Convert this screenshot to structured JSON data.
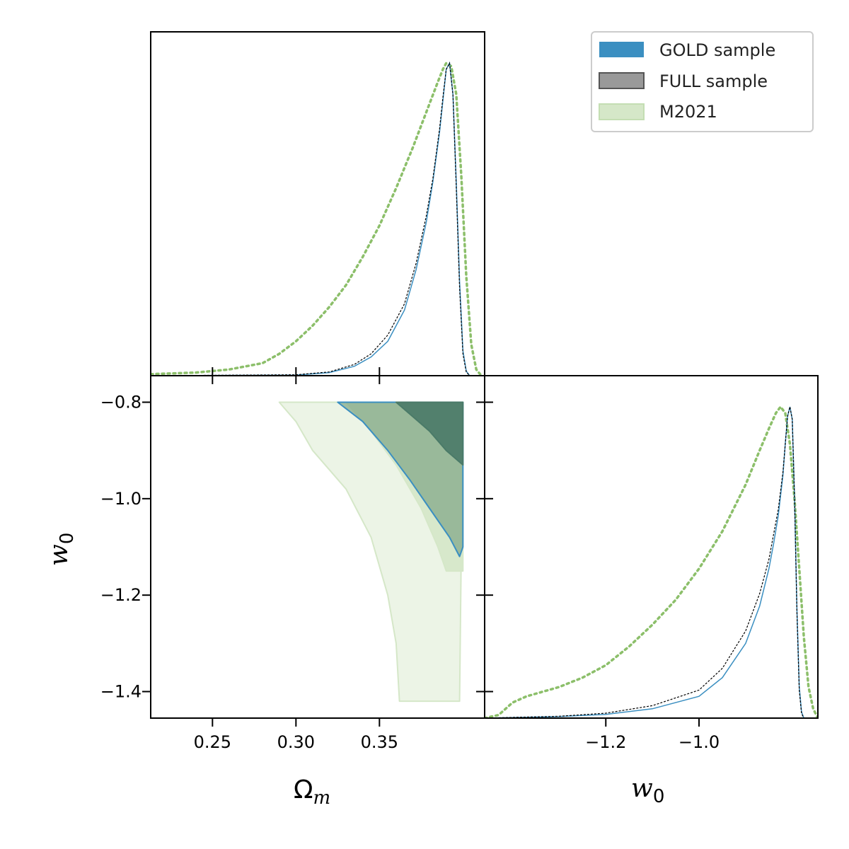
{
  "colors": {
    "gold": "#3b8fc1",
    "full": "#000000",
    "full_fill": "#999999",
    "m2021_line": "#8cbf6a",
    "m2021_fill": "#d5e7c8",
    "frame": "#000000"
  },
  "chart_data": [
    {
      "type": "line",
      "panel": "1D marginal Omega_m",
      "xlim": [
        0.213,
        0.413
      ],
      "ylim": [
        0,
        1.1
      ],
      "series": [
        {
          "name": "GOLD sample",
          "style": "solid",
          "x": [
            0.213,
            0.3,
            0.32,
            0.335,
            0.345,
            0.355,
            0.365,
            0.372,
            0.378,
            0.382,
            0.386,
            0.388,
            0.39,
            0.392,
            0.394,
            0.396,
            0.398,
            0.4,
            0.402,
            0.404,
            0.413
          ],
          "y": [
            0,
            0.002,
            0.01,
            0.03,
            0.06,
            0.11,
            0.21,
            0.34,
            0.49,
            0.62,
            0.78,
            0.88,
            0.98,
            1.0,
            0.9,
            0.62,
            0.3,
            0.08,
            0.015,
            0,
            0
          ]
        },
        {
          "name": "FULL sample",
          "style": "dashed",
          "x": [
            0.213,
            0.3,
            0.32,
            0.335,
            0.345,
            0.355,
            0.365,
            0.372,
            0.378,
            0.382,
            0.386,
            0.388,
            0.39,
            0.392,
            0.394,
            0.396,
            0.398,
            0.4,
            0.402,
            0.404,
            0.413
          ],
          "y": [
            0,
            0.003,
            0.012,
            0.036,
            0.07,
            0.13,
            0.23,
            0.36,
            0.51,
            0.63,
            0.79,
            0.89,
            0.98,
            1.0,
            0.9,
            0.6,
            0.28,
            0.07,
            0.012,
            0,
            0
          ]
        },
        {
          "name": "M2021",
          "style": "dotted",
          "x": [
            0.213,
            0.24,
            0.26,
            0.28,
            0.29,
            0.3,
            0.31,
            0.32,
            0.33,
            0.34,
            0.35,
            0.36,
            0.37,
            0.375,
            0.38,
            0.385,
            0.388,
            0.39,
            0.393,
            0.396,
            0.399,
            0.402,
            0.405,
            0.408,
            0.411
          ],
          "y": [
            0.005,
            0.01,
            0.02,
            0.04,
            0.07,
            0.11,
            0.16,
            0.22,
            0.29,
            0.38,
            0.48,
            0.6,
            0.73,
            0.8,
            0.87,
            0.94,
            0.98,
            1.0,
            0.99,
            0.9,
            0.64,
            0.32,
            0.1,
            0.02,
            0
          ]
        }
      ]
    },
    {
      "type": "contour",
      "panel": "2D Omega_m vs w_0",
      "xlim": [
        0.213,
        0.413
      ],
      "ylim": [
        -1.455,
        -0.745
      ],
      "xlabel": "Ω_m",
      "ylabel": "w_0",
      "series": [
        {
          "name": "M2021 95%",
          "points": [
            [
              0.29,
              -0.8
            ],
            [
              0.3,
              -0.84
            ],
            [
              0.31,
              -0.9
            ],
            [
              0.33,
              -0.98
            ],
            [
              0.345,
              -1.08
            ],
            [
              0.355,
              -1.2
            ],
            [
              0.36,
              -1.3
            ],
            [
              0.362,
              -1.42
            ],
            [
              0.398,
              -1.42
            ],
            [
              0.4,
              -0.8
            ]
          ]
        },
        {
          "name": "M2021 68%",
          "points": [
            [
              0.33,
              -0.8
            ],
            [
              0.345,
              -0.86
            ],
            [
              0.36,
              -0.93
            ],
            [
              0.375,
              -1.02
            ],
            [
              0.385,
              -1.1
            ],
            [
              0.39,
              -1.15
            ],
            [
              0.4,
              -1.15
            ],
            [
              0.4,
              -0.8
            ]
          ]
        },
        {
          "name": "GOLD 95%",
          "points": [
            [
              0.325,
              -0.8
            ],
            [
              0.34,
              -0.84
            ],
            [
              0.355,
              -0.9
            ],
            [
              0.368,
              -0.96
            ],
            [
              0.38,
              -1.02
            ],
            [
              0.392,
              -1.08
            ],
            [
              0.398,
              -1.12
            ],
            [
              0.4,
              -1.1
            ],
            [
              0.4,
              -0.8
            ]
          ]
        },
        {
          "name": "GOLD 68%",
          "points": [
            [
              0.36,
              -0.8
            ],
            [
              0.37,
              -0.83
            ],
            [
              0.38,
              -0.86
            ],
            [
              0.39,
              -0.9
            ],
            [
              0.4,
              -0.93
            ],
            [
              0.4,
              -0.8
            ]
          ]
        }
      ]
    },
    {
      "type": "line",
      "panel": "1D marginal w_0",
      "xlim": [
        -1.46,
        -0.745
      ],
      "ylim": [
        0,
        1.1
      ],
      "xlabel": "w_0",
      "series": [
        {
          "name": "GOLD sample",
          "style": "solid",
          "x": [
            -1.46,
            -1.3,
            -1.2,
            -1.1,
            -1.0,
            -0.95,
            -0.9,
            -0.87,
            -0.85,
            -0.84,
            -0.83,
            -0.82,
            -0.815,
            -0.81,
            -0.805,
            -0.8,
            -0.795,
            -0.79,
            -0.785,
            -0.78,
            -0.775
          ],
          "y": [
            0,
            0.005,
            0.012,
            0.03,
            0.07,
            0.13,
            0.24,
            0.36,
            0.48,
            0.56,
            0.65,
            0.78,
            0.88,
            0.97,
            1.0,
            0.96,
            0.7,
            0.35,
            0.1,
            0.02,
            0
          ]
        },
        {
          "name": "FULL sample",
          "style": "dashed",
          "x": [
            -1.46,
            -1.3,
            -1.2,
            -1.1,
            -1.0,
            -0.95,
            -0.9,
            -0.87,
            -0.85,
            -0.84,
            -0.83,
            -0.82,
            -0.815,
            -0.81,
            -0.805,
            -0.8,
            -0.795,
            -0.79,
            -0.785,
            -0.78,
            -0.775
          ],
          "y": [
            0,
            0.006,
            0.016,
            0.04,
            0.09,
            0.16,
            0.28,
            0.4,
            0.51,
            0.59,
            0.67,
            0.79,
            0.88,
            0.97,
            1.0,
            0.96,
            0.7,
            0.34,
            0.09,
            0.015,
            0
          ]
        },
        {
          "name": "M2021",
          "style": "dotted",
          "x": [
            -1.46,
            -1.43,
            -1.4,
            -1.37,
            -1.3,
            -1.25,
            -1.2,
            -1.15,
            -1.1,
            -1.05,
            -1.0,
            -0.95,
            -0.9,
            -0.87,
            -0.85,
            -0.835,
            -0.825,
            -0.815,
            -0.805,
            -0.795,
            -0.785,
            -0.775,
            -0.765,
            -0.755,
            -0.745
          ],
          "y": [
            0,
            0.01,
            0.05,
            0.07,
            0.1,
            0.13,
            0.17,
            0.23,
            0.3,
            0.38,
            0.48,
            0.6,
            0.75,
            0.86,
            0.93,
            0.98,
            1.0,
            0.98,
            0.88,
            0.7,
            0.48,
            0.26,
            0.1,
            0.03,
            0
          ]
        }
      ]
    }
  ],
  "axes": {
    "omega_ticks": [
      "0.25",
      "0.30",
      "0.35"
    ],
    "omega_tick_values": [
      0.25,
      0.3,
      0.35
    ],
    "w0_left_ticks": [
      "−0.8",
      "−1.0",
      "−1.2",
      "−1.4"
    ],
    "w0_left_tick_values": [
      -0.8,
      -1.0,
      -1.2,
      -1.4
    ],
    "w0_bottom_ticks": [
      "−1.2",
      "−1.0"
    ],
    "w0_bottom_tick_values": [
      -1.2,
      -1.0
    ],
    "xlabel_left_main": "Ω",
    "xlabel_left_sub": "m",
    "ylabel_main": "w",
    "ylabel_sub": "0",
    "xlabel_right_main": "w",
    "xlabel_right_sub": "0"
  },
  "legend": {
    "gold_label": "GOLD sample",
    "full_label": "FULL sample",
    "m2021_label": "M2021"
  }
}
